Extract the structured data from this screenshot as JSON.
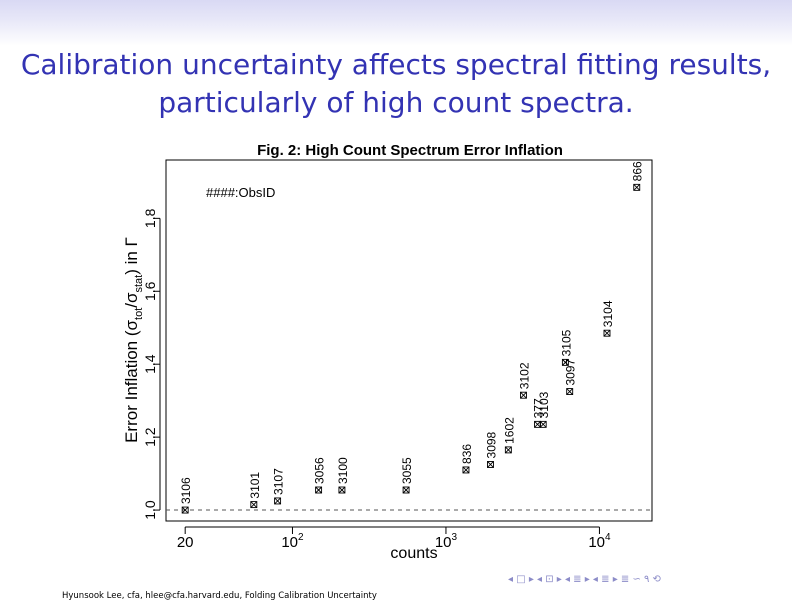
{
  "slide": {
    "title_line1": "Calibration uncertainty affects spectral fitting results,",
    "title_line2": "particularly of high count spectra."
  },
  "footer": {
    "text": "Hyunsook Lee, cfa, hlee@cfa.harvard.edu, Folding Calibration Uncertainty"
  },
  "nav": {
    "symbols": "◂ □ ▸ ◂ ⊡ ▸ ◂ ≣ ▸ ◂ ≣ ▸ ≣ ∽ ۹ ⟲"
  },
  "colors": {
    "title": "#3333b3",
    "header_band": "#d9d9f4",
    "nav": "#8c8cc8"
  },
  "chart_data": {
    "type": "scatter",
    "title": "Fig. 2: High Count Spectrum Error Inflation",
    "xlabel": "counts",
    "ylabel_main": "Error Inflation (σ",
    "ylabel_sub1": "tot",
    "ylabel_mid": "/σ",
    "ylabel_sub2": "stat",
    "ylabel_end": ") in Γ",
    "annotation": "####:ObsID",
    "x_scale": "log",
    "xlim": [
      15,
      22000
    ],
    "ylim": [
      0.97,
      1.96
    ],
    "x_ticks": [
      {
        "value": 20,
        "base": "20",
        "exp": ""
      },
      {
        "value": 100,
        "base": "10",
        "exp": "2"
      },
      {
        "value": 1000,
        "base": "10",
        "exp": "3"
      },
      {
        "value": 10000,
        "base": "10",
        "exp": "4"
      }
    ],
    "y_ticks": [
      {
        "value": 1.0,
        "label": "1.0"
      },
      {
        "value": 1.2,
        "label": "1.2"
      },
      {
        "value": 1.4,
        "label": "1.4"
      },
      {
        "value": 1.6,
        "label": "1.6"
      },
      {
        "value": 1.8,
        "label": "1.8"
      }
    ],
    "reference_line": 1.0,
    "points": [
      {
        "id": "3106",
        "x": 20,
        "y": 1.0
      },
      {
        "id": "3101",
        "x": 56,
        "y": 1.015
      },
      {
        "id": "3107",
        "x": 80,
        "y": 1.025
      },
      {
        "id": "3056",
        "x": 148,
        "y": 1.055
      },
      {
        "id": "3100",
        "x": 210,
        "y": 1.055
      },
      {
        "id": "3055",
        "x": 550,
        "y": 1.055
      },
      {
        "id": "836",
        "x": 1350,
        "y": 1.11
      },
      {
        "id": "3098",
        "x": 1950,
        "y": 1.125
      },
      {
        "id": "1602",
        "x": 2550,
        "y": 1.165
      },
      {
        "id": "3102",
        "x": 3200,
        "y": 1.315
      },
      {
        "id": "377",
        "x": 3950,
        "y": 1.235
      },
      {
        "id": "3103",
        "x": 4300,
        "y": 1.235
      },
      {
        "id": "3097",
        "x": 6400,
        "y": 1.325
      },
      {
        "id": "3105",
        "x": 6000,
        "y": 1.405
      },
      {
        "id": "3104",
        "x": 11200,
        "y": 1.485
      },
      {
        "id": "866",
        "x": 17500,
        "y": 1.885
      }
    ]
  }
}
